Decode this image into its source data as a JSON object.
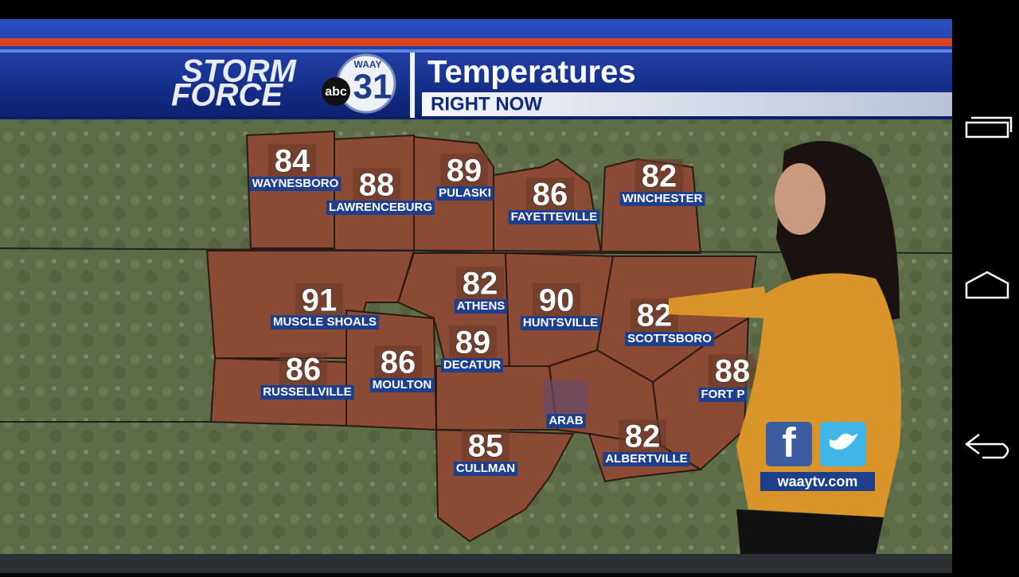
{
  "header": {
    "brand_line1": "STORM",
    "brand_line2": "FORCE",
    "network": "abc",
    "station": "WAAY",
    "channel": "31",
    "title": "Temperatures",
    "subtitle": "RIGHT NOW"
  },
  "cities": [
    {
      "name": "WAYNESBORO",
      "temp": 84
    },
    {
      "name": "LAWRENCEBURG",
      "temp": 88
    },
    {
      "name": "PULASKI",
      "temp": 89
    },
    {
      "name": "FAYETTEVILLE",
      "temp": 86
    },
    {
      "name": "WINCHESTER",
      "temp": 82
    },
    {
      "name": "MUSCLE SHOALS",
      "temp": 91
    },
    {
      "name": "ATHENS",
      "temp": 82
    },
    {
      "name": "HUNTSVILLE",
      "temp": 90
    },
    {
      "name": "SCOTTSBORO",
      "temp": 82
    },
    {
      "name": "RUSSELLVILLE",
      "temp": 86
    },
    {
      "name": "MOULTON",
      "temp": 86
    },
    {
      "name": "DECATUR",
      "temp": 89
    },
    {
      "name": "ARAB"
    },
    {
      "name": "FORT P",
      "temp": 88
    },
    {
      "name": "ALBERTVILLE",
      "temp": 82
    },
    {
      "name": "CULLMAN",
      "temp": 85
    }
  ],
  "social": {
    "facebook": "f",
    "website": "waaytv.com"
  }
}
